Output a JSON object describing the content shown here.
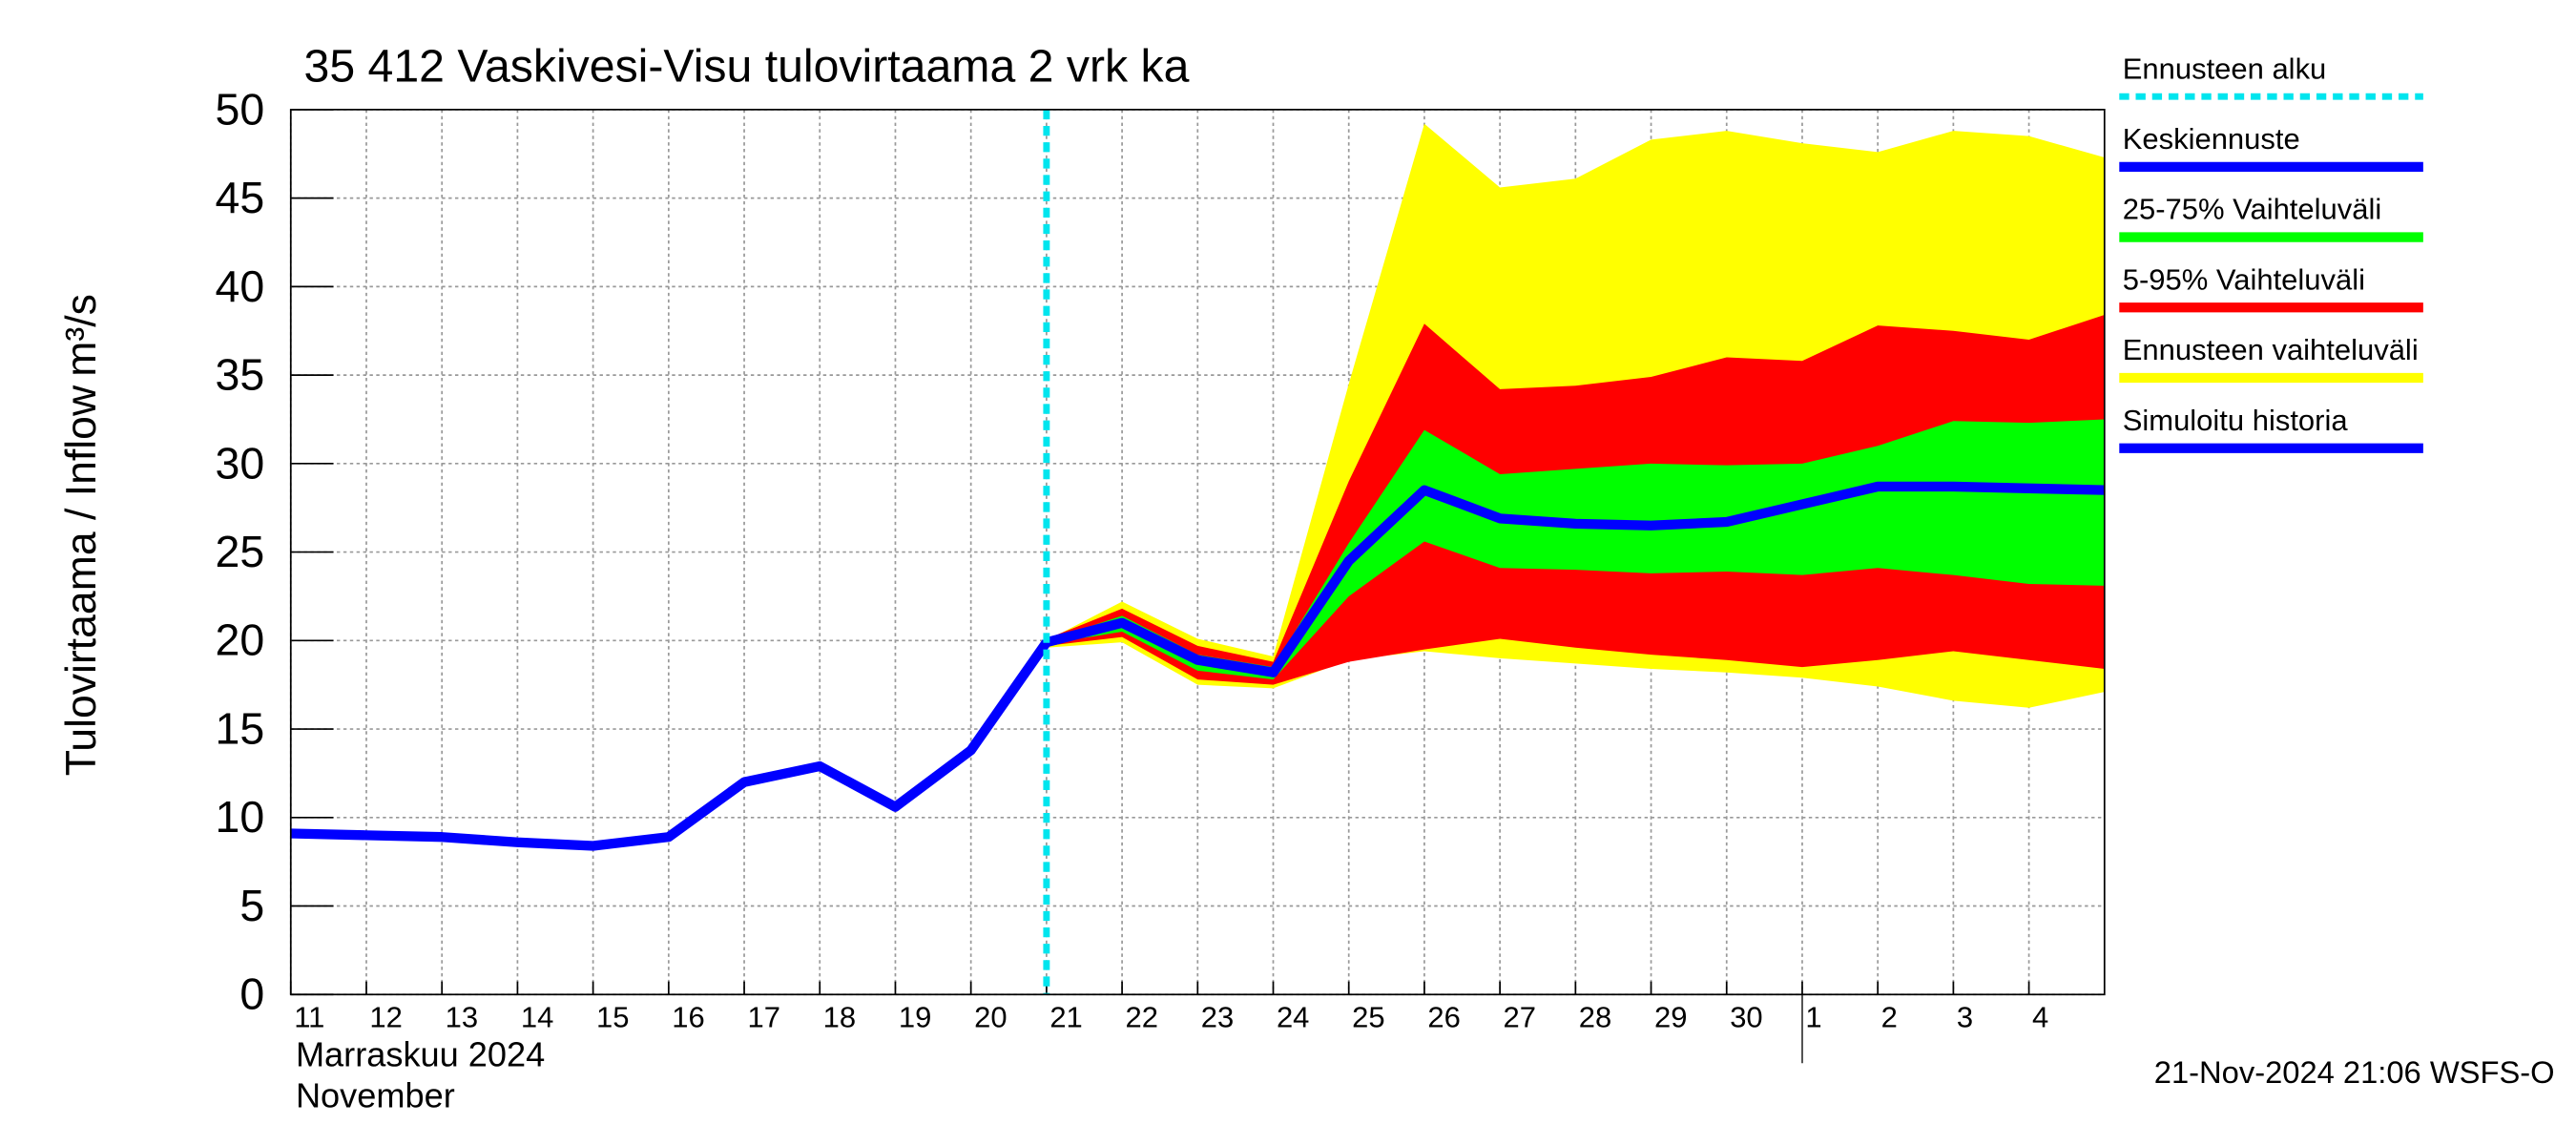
{
  "chart_data": {
    "type": "line",
    "title": "35 412 Vaskivesi-Visu tulovirtaama 2 vrk ka",
    "y_label": "Tulovirtaama / Inflow",
    "y_unit": "m³/s",
    "x_label_fi": "Marraskuu 2024",
    "x_label_en": "November",
    "footer": "21-Nov-2024 21:06 WSFS-O",
    "x": [
      "2024-11-11",
      "2024-11-12",
      "2024-11-13",
      "2024-11-14",
      "2024-11-15",
      "2024-11-16",
      "2024-11-17",
      "2024-11-18",
      "2024-11-19",
      "2024-11-20",
      "2024-11-21",
      "2024-11-22",
      "2024-11-23",
      "2024-11-24",
      "2024-11-25",
      "2024-11-26",
      "2024-11-27",
      "2024-11-28",
      "2024-11-29",
      "2024-11-30",
      "2024-12-01",
      "2024-12-02",
      "2024-12-03",
      "2024-12-04",
      "2024-12-05"
    ],
    "xlim": [
      "2024-11-11",
      "2024-12-05"
    ],
    "xticks": [
      {
        "value": "2024-11-11",
        "label": "11"
      },
      {
        "value": "2024-11-12",
        "label": "12"
      },
      {
        "value": "2024-11-13",
        "label": "13"
      },
      {
        "value": "2024-11-14",
        "label": "14"
      },
      {
        "value": "2024-11-15",
        "label": "15"
      },
      {
        "value": "2024-11-16",
        "label": "16"
      },
      {
        "value": "2024-11-17",
        "label": "17"
      },
      {
        "value": "2024-11-18",
        "label": "18"
      },
      {
        "value": "2024-11-19",
        "label": "19"
      },
      {
        "value": "2024-11-20",
        "label": "20"
      },
      {
        "value": "2024-11-21",
        "label": "21"
      },
      {
        "value": "2024-11-22",
        "label": "22"
      },
      {
        "value": "2024-11-23",
        "label": "23"
      },
      {
        "value": "2024-11-24",
        "label": "24"
      },
      {
        "value": "2024-11-25",
        "label": "25"
      },
      {
        "value": "2024-11-26",
        "label": "26"
      },
      {
        "value": "2024-11-27",
        "label": "27"
      },
      {
        "value": "2024-11-28",
        "label": "28"
      },
      {
        "value": "2024-11-29",
        "label": "29"
      },
      {
        "value": "2024-11-30",
        "label": "30"
      },
      {
        "value": "2024-12-01",
        "label": "1"
      },
      {
        "value": "2024-12-02",
        "label": "2"
      },
      {
        "value": "2024-12-03",
        "label": "3"
      },
      {
        "value": "2024-12-04",
        "label": "4"
      }
    ],
    "month_boundary": "2024-12-01",
    "ylim": [
      0,
      50
    ],
    "yticks": [
      0,
      5,
      10,
      15,
      20,
      25,
      30,
      35,
      40,
      45,
      50
    ],
    "grid": true,
    "forecast_start": {
      "name": "Ennusteen alku",
      "x": "2024-11-21",
      "color": "#00e5ee"
    },
    "series": [
      {
        "name": "Keskiennuste",
        "kind": "line",
        "color": "#0000ff",
        "values": [
          null,
          null,
          null,
          null,
          null,
          null,
          null,
          null,
          null,
          null,
          19.9,
          21.0,
          18.9,
          18.2,
          24.5,
          28.5,
          26.9,
          26.6,
          26.5,
          26.7,
          27.7,
          28.7,
          28.7,
          28.6,
          28.5
        ]
      },
      {
        "name": "25-75% Vaihteluväli",
        "kind": "band",
        "color": "#00ff00",
        "lower": [
          null,
          null,
          null,
          null,
          null,
          null,
          null,
          null,
          null,
          null,
          19.8,
          20.5,
          18.3,
          17.8,
          22.5,
          25.6,
          24.1,
          24.0,
          23.8,
          23.9,
          23.7,
          24.1,
          23.7,
          23.2,
          23.1
        ],
        "upper": [
          null,
          null,
          null,
          null,
          null,
          null,
          null,
          null,
          null,
          null,
          20.0,
          21.4,
          19.2,
          18.5,
          25.5,
          31.9,
          29.4,
          29.7,
          30.0,
          29.9,
          30.0,
          31.0,
          32.4,
          32.3,
          32.5
        ]
      },
      {
        "name": "5-95% Vaihteluväli",
        "kind": "band",
        "color": "#ff0000",
        "lower": [
          null,
          null,
          null,
          null,
          null,
          null,
          null,
          null,
          null,
          null,
          19.7,
          20.2,
          17.8,
          17.5,
          18.8,
          19.5,
          20.1,
          19.6,
          19.2,
          18.9,
          18.5,
          18.9,
          19.4,
          18.9,
          18.4
        ],
        "upper": [
          null,
          null,
          null,
          null,
          null,
          null,
          null,
          null,
          null,
          null,
          20.1,
          21.8,
          19.7,
          18.8,
          29.0,
          37.9,
          34.2,
          34.4,
          34.9,
          36.0,
          35.8,
          37.8,
          37.5,
          37.0,
          38.4
        ]
      },
      {
        "name": "Ennusteen vaihteluväli",
        "kind": "band",
        "color": "#ffff00",
        "lower": [
          null,
          null,
          null,
          null,
          null,
          null,
          null,
          null,
          null,
          null,
          19.6,
          19.9,
          17.5,
          17.3,
          18.9,
          19.4,
          19.0,
          18.7,
          18.4,
          18.2,
          17.9,
          17.4,
          16.6,
          16.2,
          17.1
        ],
        "upper": [
          null,
          null,
          null,
          null,
          null,
          null,
          null,
          null,
          null,
          null,
          20.0,
          22.2,
          20.1,
          19.1,
          34.5,
          49.2,
          45.6,
          46.1,
          48.3,
          48.8,
          48.1,
          47.6,
          48.8,
          48.5,
          47.3
        ]
      },
      {
        "name": "Simuloitu historia",
        "kind": "line",
        "color": "#0000ff",
        "values": [
          9.1,
          9.0,
          8.9,
          8.6,
          8.4,
          8.9,
          12.0,
          12.9,
          10.6,
          13.8,
          19.9,
          null,
          null,
          null,
          null,
          null,
          null,
          null,
          null,
          null,
          null,
          null,
          null,
          null,
          null
        ]
      }
    ]
  }
}
